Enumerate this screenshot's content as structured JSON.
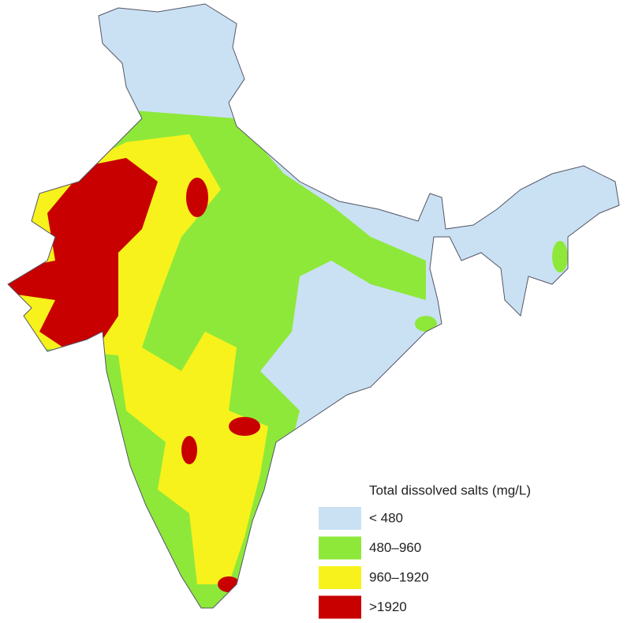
{
  "legend": {
    "title": "Total dissolved salts (mg/L)",
    "items": [
      {
        "label": "< 480",
        "color": "#c9e1f3"
      },
      {
        "label": "480–960",
        "color": "#8ee83a"
      },
      {
        "label": "960–1920",
        "color": "#f7f21c"
      },
      {
        "label": ">1920",
        "color": "#c80000"
      }
    ]
  }
}
